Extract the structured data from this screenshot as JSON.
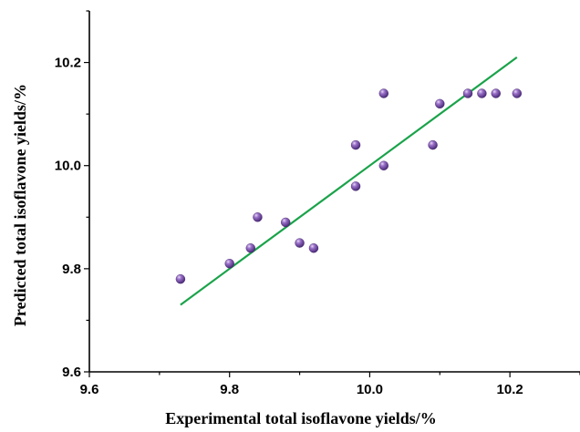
{
  "chart_data": {
    "type": "scatter",
    "title": "",
    "xlabel": "Experimental total isoflavone yields/%",
    "ylabel": "Predicted total isoflavone yields/%",
    "xlim": [
      9.6,
      10.3
    ],
    "ylim": [
      9.6,
      10.3
    ],
    "x_ticks": [
      9.6,
      9.8,
      10.0,
      10.2
    ],
    "x_tick_labels": [
      "9.6",
      "9.8",
      "10.0",
      "10.2"
    ],
    "y_ticks": [
      9.6,
      9.8,
      10.0,
      10.2
    ],
    "y_tick_labels": [
      "9.6",
      "9.8",
      "10.0",
      "10.2"
    ],
    "grid": false,
    "series": [
      {
        "type": "scatter",
        "color": "#7b4fa8",
        "x": [
          9.73,
          9.8,
          9.83,
          9.84,
          9.88,
          9.9,
          9.92,
          9.98,
          9.98,
          10.02,
          10.02,
          10.09,
          10.1,
          10.14,
          10.16,
          10.18,
          10.21
        ],
        "y": [
          9.78,
          9.81,
          9.84,
          9.9,
          9.89,
          9.85,
          9.84,
          10.04,
          9.96,
          10.14,
          10.0,
          10.04,
          10.12,
          10.14,
          10.14,
          10.14,
          10.14
        ]
      },
      {
        "type": "line",
        "color": "#1aa34a",
        "x": [
          9.73,
          10.21
        ],
        "y": [
          9.73,
          10.21
        ]
      }
    ]
  }
}
